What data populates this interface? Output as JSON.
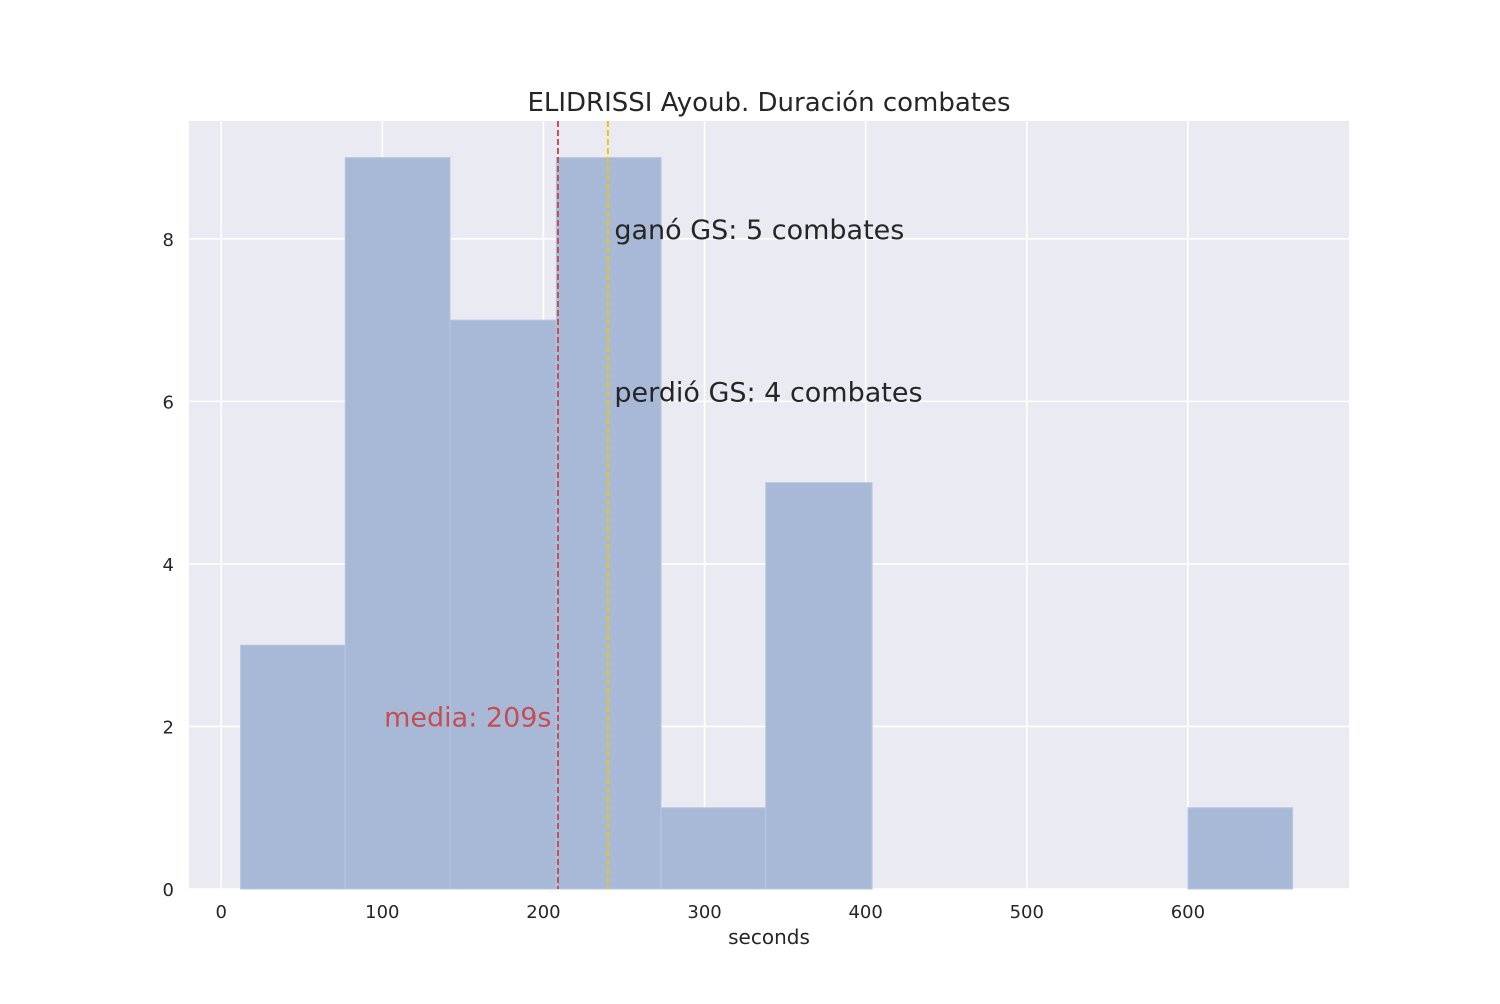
{
  "chart_data": {
    "type": "bar",
    "title": "ELIDRISSI Ayoub. Duración combates",
    "xlabel": "seconds",
    "ylabel": "",
    "xlim": [
      -20,
      700
    ],
    "ylim": [
      0,
      9.45
    ],
    "x_ticks": [
      0,
      100,
      200,
      300,
      400,
      500,
      600
    ],
    "x_tick_labels": [
      "0",
      "100",
      "200",
      "300",
      "400",
      "500",
      "600"
    ],
    "y_ticks": [
      0,
      2,
      4,
      6,
      8
    ],
    "y_tick_labels": [
      "0",
      "2",
      "4",
      "6",
      "8"
    ],
    "grid": true,
    "bins": [
      {
        "start": 12,
        "end": 77,
        "count": 3
      },
      {
        "start": 77,
        "end": 142,
        "count": 9
      },
      {
        "start": 142,
        "end": 208,
        "count": 7
      },
      {
        "start": 208,
        "end": 273,
        "count": 9
      },
      {
        "start": 273,
        "end": 338,
        "count": 1
      },
      {
        "start": 338,
        "end": 404,
        "count": 5
      },
      {
        "start": 404,
        "end": 469,
        "count": 0
      },
      {
        "start": 469,
        "end": 534,
        "count": 0
      },
      {
        "start": 534,
        "end": 600,
        "count": 0
      },
      {
        "start": 600,
        "end": 665,
        "count": 1
      }
    ],
    "reference_lines": [
      {
        "name": "mean",
        "x": 209,
        "color": "#c44e52",
        "style": "dashed"
      },
      {
        "name": "golden-score",
        "x": 240,
        "color": "#f5c400",
        "style": "dashed"
      }
    ],
    "annotations": [
      {
        "name": "won-gs",
        "text": "ganó GS: 5 combates",
        "x": 244,
        "y": 8,
        "color": "#262626",
        "anchor": "start"
      },
      {
        "name": "lost-gs",
        "text": "perdió GS: 4 combates",
        "x": 244,
        "y": 6,
        "color": "#262626",
        "anchor": "start"
      },
      {
        "name": "mean",
        "text": "media: 209s",
        "x": 205,
        "y": 2,
        "color": "#c44e52",
        "anchor": "end"
      }
    ],
    "colors": {
      "bar_fill": "#a8b9d8",
      "background": "#eaeaf2",
      "grid": "#ffffff",
      "text": "#262626"
    }
  }
}
